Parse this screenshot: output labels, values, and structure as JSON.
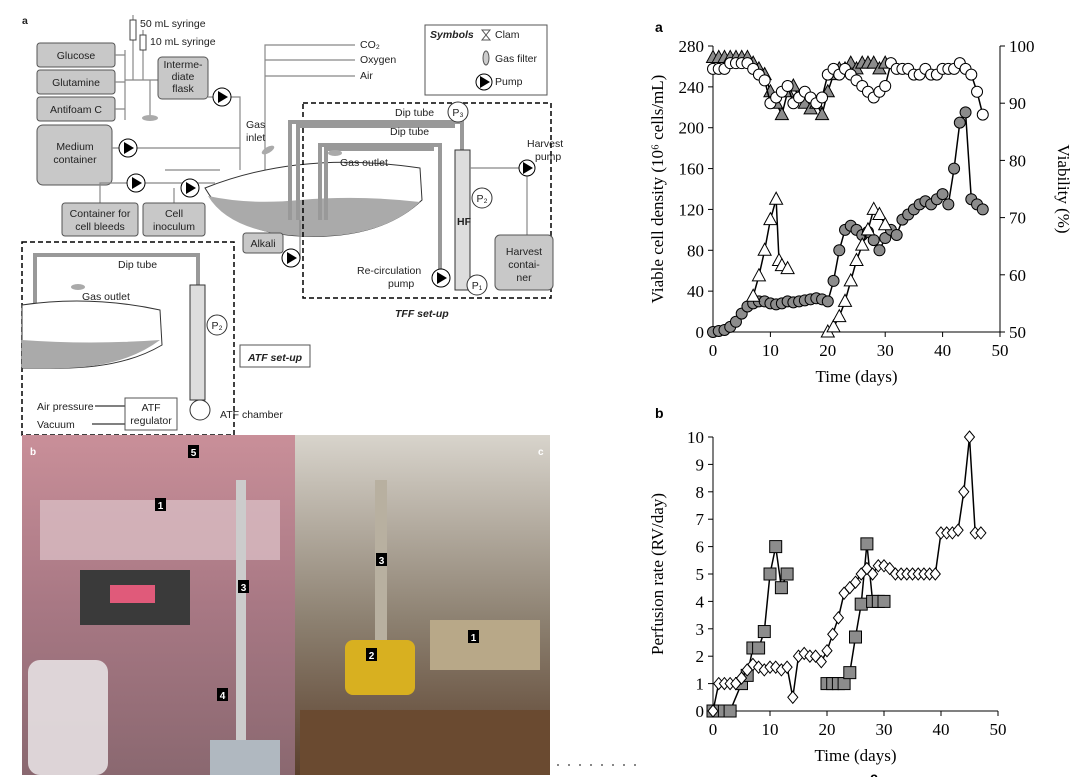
{
  "diagram": {
    "panel": "a",
    "syringes": [
      "50 mL syringe",
      "10 mL syringe"
    ],
    "feeds": [
      "Glucose",
      "Glutamine",
      "Antifoam C"
    ],
    "intermediate_flask": [
      "Interme-",
      "diate",
      "flask"
    ],
    "gases": [
      "CO₂",
      "Oxygen",
      "Air"
    ],
    "symbols": {
      "title": "Symbols",
      "items": [
        "Clam",
        "Gas filter",
        "Pump"
      ]
    },
    "medium_container": [
      "Medium",
      "container"
    ],
    "gas_inlet": [
      "Gas",
      "inlet"
    ],
    "bleed_container": [
      "Container for",
      "cell bleeds"
    ],
    "cell_inoculum": [
      "Cell",
      "inoculum"
    ],
    "alkali": "Alkali",
    "tff": {
      "dip_tubes": [
        "Dip tube",
        "Dip tube"
      ],
      "gas_outlet": "Gas outlet",
      "pressures": [
        "P₃",
        "P₂",
        "P₁"
      ],
      "hf": "HF",
      "harvest_pump": [
        "Harvest",
        "pump"
      ],
      "harvest_container": [
        "Harvest",
        "contai-",
        "ner"
      ],
      "recirculation_pump": [
        "Re-circulation",
        "pump"
      ],
      "label": "TFF set-up"
    },
    "atf": {
      "dip_tube": "Dip tube",
      "gas_outlet": "Gas outlet",
      "pressure": "P₂",
      "label": "ATF set-up",
      "air_pressure": "Air pressure",
      "regulator": [
        "ATF",
        "regulator"
      ],
      "vacuum": "Vacuum",
      "chamber": "ATF chamber"
    }
  },
  "photos": [
    {
      "panel": "b",
      "markers": [
        "1",
        "5",
        "3",
        "4"
      ]
    },
    {
      "panel": "c",
      "markers": [
        "3",
        "2",
        "1"
      ]
    }
  ],
  "next_panel": "c",
  "chart_data": [
    {
      "type": "line",
      "panel": "a",
      "xlabel": "Time (days)",
      "ylabel": "Viable cell density (10⁶ cells/mL)",
      "y2label": "Viability (%)",
      "xlim": [
        0,
        50
      ],
      "xticks": [
        0,
        10,
        20,
        30,
        40,
        50
      ],
      "ylim": [
        0,
        280
      ],
      "yticks": [
        0,
        40,
        80,
        120,
        160,
        200,
        240,
        280
      ],
      "y2lim": [
        50,
        100
      ],
      "y2ticks": [
        50,
        60,
        70,
        80,
        90,
        100
      ],
      "series": [
        {
          "marker": "circle",
          "color": "#8c8c8c",
          "x": [
            0,
            1,
            2,
            3,
            4,
            5,
            6,
            7,
            8,
            9,
            10,
            11,
            12,
            13,
            14,
            15,
            16,
            17,
            18,
            19,
            20,
            21,
            22,
            23,
            24,
            25,
            26,
            27,
            28,
            29,
            30,
            31,
            32,
            33,
            34,
            35,
            36,
            37,
            38,
            39,
            40,
            41,
            42,
            43,
            44,
            45,
            46,
            47
          ],
          "values": [
            0,
            1,
            2,
            5,
            10,
            18,
            25,
            28,
            30,
            30,
            28,
            27,
            28,
            30,
            29,
            30,
            31,
            32,
            33,
            32,
            30,
            50,
            80,
            100,
            104,
            100,
            95,
            98,
            90,
            80,
            92,
            100,
            95,
            110,
            115,
            120,
            125,
            128,
            125,
            130,
            135,
            125,
            160,
            205,
            215,
            130,
            125,
            120
          ]
        },
        {
          "marker": "triangle",
          "color": "#ffffff",
          "x": [
            7,
            8,
            9,
            10,
            11,
            11.5,
            12,
            13
          ],
          "values": [
            35,
            55,
            80,
            110,
            130,
            70,
            65,
            62
          ]
        },
        {
          "marker": "triangle",
          "color": "#ffffff",
          "x": [
            20,
            21,
            22,
            23,
            24,
            25,
            26,
            27,
            28,
            29,
            30
          ],
          "values": [
            0,
            5,
            15,
            30,
            50,
            70,
            85,
            100,
            120,
            115,
            105
          ]
        },
        {
          "marker": "triangle",
          "color": "#8c8c8c",
          "axis": "y2",
          "x": [
            0,
            1,
            2,
            3,
            4,
            5,
            6,
            7,
            8,
            9,
            10,
            11,
            12,
            13,
            14,
            15,
            16,
            17,
            18,
            19,
            20,
            21,
            22,
            23,
            24,
            25,
            26,
            27,
            28,
            29,
            30
          ],
          "values": [
            98,
            98,
            98,
            98,
            98,
            98,
            98,
            97,
            96,
            95,
            92,
            90,
            88,
            92,
            93,
            91,
            90,
            89,
            90,
            88,
            92,
            95,
            96,
            96,
            97,
            96,
            97,
            97,
            97,
            96,
            97
          ]
        },
        {
          "marker": "circle",
          "color": "#ffffff",
          "axis": "y2",
          "x": [
            0,
            1,
            2,
            3,
            4,
            5,
            6,
            7,
            8,
            9,
            10,
            11,
            12,
            13,
            14,
            15,
            16,
            17,
            18,
            19,
            20,
            21,
            22,
            23,
            24,
            25,
            26,
            27,
            28,
            29,
            30,
            31,
            32,
            33,
            34,
            35,
            36,
            37,
            38,
            39,
            40,
            41,
            42,
            43,
            44,
            45,
            46,
            47
          ],
          "values": [
            96,
            96,
            96,
            97,
            97,
            97,
            97,
            96,
            95,
            94,
            90,
            91,
            92,
            93,
            90,
            91,
            92,
            91,
            90,
            91,
            95,
            96,
            95,
            96,
            95,
            94,
            93,
            92,
            91,
            92,
            93,
            97,
            96,
            96,
            96,
            95,
            95,
            96,
            95,
            95,
            96,
            96,
            96,
            97,
            96,
            95,
            92,
            88
          ]
        }
      ]
    },
    {
      "type": "line",
      "panel": "b",
      "xlabel": "Time (days)",
      "ylabel": "Perfusion rate (RV/day)",
      "xlim": [
        0,
        50
      ],
      "xticks": [
        0,
        10,
        20,
        30,
        40,
        50
      ],
      "ylim": [
        0,
        10
      ],
      "yticks": [
        0,
        1,
        2,
        3,
        4,
        5,
        6,
        7,
        8,
        9,
        10
      ],
      "series": [
        {
          "marker": "square",
          "color": "#8c8c8c",
          "x": [
            0,
            1,
            2,
            3,
            5,
            6,
            7,
            8,
            9,
            10,
            11,
            12,
            13
          ],
          "values": [
            0,
            0,
            0,
            0,
            1,
            1.3,
            2.3,
            2.3,
            2.9,
            5,
            6,
            4.5,
            5
          ]
        },
        {
          "marker": "square",
          "color": "#8c8c8c",
          "x": [
            20,
            21,
            22,
            23,
            24,
            25,
            26,
            27,
            28,
            29,
            30
          ],
          "values": [
            1,
            1,
            1,
            1,
            1.4,
            2.7,
            3.9,
            6.1,
            4,
            4,
            4
          ]
        },
        {
          "marker": "diamond",
          "color": "#ffffff",
          "x": [
            0,
            1,
            2,
            3,
            4,
            5,
            6,
            7,
            8,
            9,
            10,
            11,
            12,
            13,
            14,
            15,
            16,
            17,
            18,
            19,
            20,
            21,
            22,
            23,
            24,
            25,
            26,
            27,
            28,
            29,
            30,
            31,
            32,
            33,
            34,
            35,
            36,
            37,
            38,
            39,
            40,
            41,
            42,
            43,
            44,
            45,
            46,
            47
          ],
          "values": [
            0,
            1,
            1,
            1,
            1,
            1.2,
            1.5,
            1.7,
            1.6,
            1.5,
            1.6,
            1.6,
            1.5,
            1.6,
            0.5,
            2,
            2.1,
            2,
            2,
            1.8,
            2.2,
            2.8,
            3.4,
            4.3,
            4.5,
            4.7,
            5,
            5.2,
            5,
            5.3,
            5.3,
            5.2,
            5,
            5,
            5,
            5,
            5,
            5,
            5,
            5,
            6.5,
            6.5,
            6.5,
            6.6,
            8,
            10,
            6.5,
            6.5
          ]
        }
      ]
    }
  ]
}
